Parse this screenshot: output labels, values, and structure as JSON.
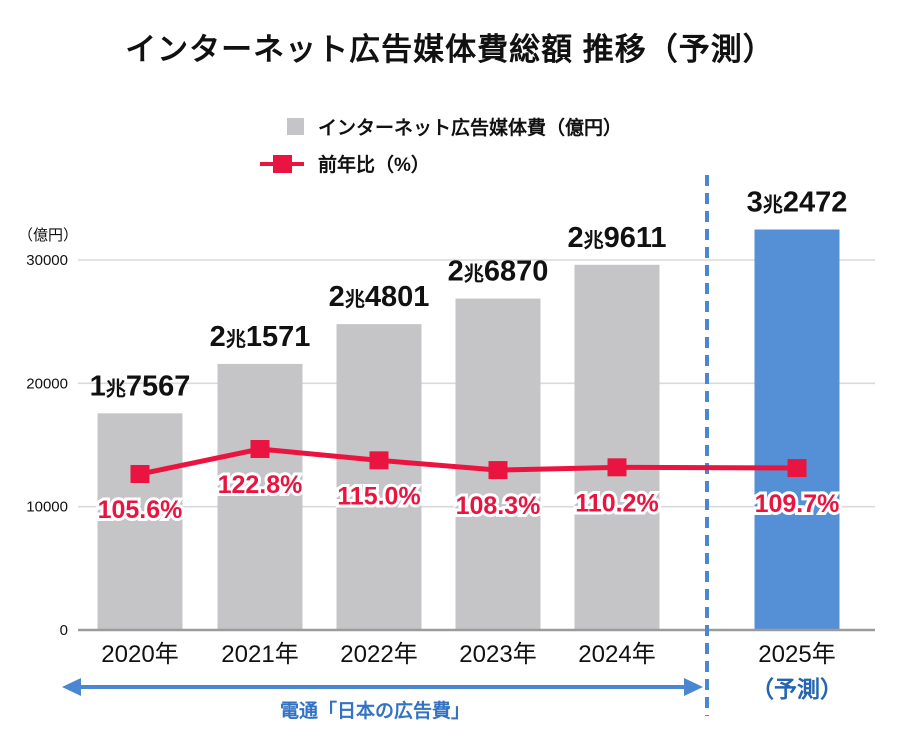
{
  "title": "インターネット広告媒体費総額 推移（予測）",
  "legend": {
    "bar_label": "インターネット広告媒体費（億円）",
    "line_label": "前年比（%）"
  },
  "colors": {
    "bar": "#c5c5c7",
    "bar_forecast": "#5590d6",
    "line": "#ea1440",
    "accent_blue": "#4a87d0",
    "note_blue": "#2565b0",
    "source_blue": "#3273c4",
    "grid": "#dadada",
    "axis": "#9b9b9b",
    "text": "#111111"
  },
  "chart_data": {
    "type": "bar+line",
    "title": "インターネット広告媒体費総額 推移（予測）",
    "categories": [
      "2020年",
      "2021年",
      "2022年",
      "2023年",
      "2024年",
      "2025年"
    ],
    "series": [
      {
        "name": "インターネット広告媒体費（億円）",
        "type": "bar",
        "values": [
          17567,
          21571,
          24801,
          26870,
          29611,
          32472
        ],
        "labels": [
          "1兆7567",
          "2兆1571",
          "2兆4801",
          "2兆6870",
          "2兆9611",
          "3兆2472"
        ]
      },
      {
        "name": "前年比（%）",
        "type": "line",
        "values": [
          105.6,
          122.8,
          115.0,
          108.3,
          110.2,
          109.7
        ],
        "labels": [
          "105.6%",
          "122.8%",
          "115.0%",
          "108.3%",
          "110.2%",
          "109.7%"
        ]
      }
    ],
    "ylabel": "（億円）",
    "yticks": [
      0,
      10000,
      20000,
      30000
    ],
    "ylim": [
      0,
      33000
    ],
    "grid": true,
    "legend_position": "top",
    "forecast": {
      "index": 5,
      "note": "（予測）"
    },
    "source_label": "電通「日本の広告費」"
  }
}
